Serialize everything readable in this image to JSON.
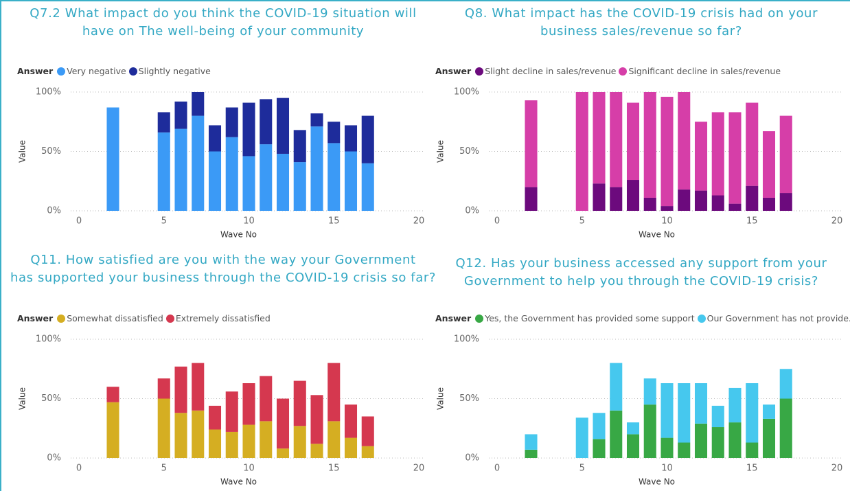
{
  "chart_data": [
    {
      "type": "bar",
      "stacked": true,
      "title": [
        "Q7.2 What impact do you think the COVID-19 situation will",
        "have on The well-being of your community"
      ],
      "legend_title": "Answer",
      "xlabel": "Wave No",
      "ylabel": "Value",
      "x": [
        2,
        5,
        6,
        7,
        8,
        9,
        10,
        11,
        12,
        13,
        14,
        15,
        16,
        17
      ],
      "series": [
        {
          "name": "Very negative",
          "color": "#3b9af6",
          "values": [
            87,
            66,
            69,
            80,
            50,
            62,
            46,
            56,
            48,
            41,
            71,
            57,
            50,
            40
          ]
        },
        {
          "name": "Slightly negative",
          "color": "#1e2c9b",
          "values": [
            null,
            17,
            23,
            20,
            22,
            25,
            45,
            38,
            47,
            27,
            11,
            18,
            22,
            40
          ]
        }
      ],
      "xlim": [
        0,
        20
      ],
      "xticks": [
        0,
        5,
        10,
        15,
        20
      ],
      "ylim": [
        0,
        100
      ],
      "yticks": [
        {
          "value": 0,
          "label": "0%"
        },
        {
          "value": 50,
          "label": "50%"
        },
        {
          "value": 100,
          "label": "100%"
        }
      ],
      "grid": true
    },
    {
      "type": "bar",
      "stacked": true,
      "title": [
        "Q8. What impact has the COVID-19 crisis had on your",
        "business sales/revenue so far?"
      ],
      "legend_title": "Answer",
      "xlabel": "Wave No",
      "ylabel": "Value",
      "x": [
        2,
        5,
        6,
        7,
        8,
        9,
        10,
        11,
        12,
        13,
        14,
        15,
        16,
        17
      ],
      "series": [
        {
          "name": "Slight decline in sales/revenue",
          "color": "#6c0a7d",
          "values": [
            20,
            null,
            23,
            20,
            26,
            11,
            4,
            18,
            17,
            13,
            6,
            21,
            11,
            15
          ]
        },
        {
          "name": "Significant decline in sales/revenue",
          "color": "#d63ea8",
          "values": [
            73,
            100,
            77,
            80,
            65,
            89,
            92,
            82,
            58,
            70,
            77,
            70,
            56,
            65
          ]
        }
      ],
      "xlim": [
        0,
        20
      ],
      "xticks": [
        0,
        5,
        10,
        15,
        20
      ],
      "ylim": [
        0,
        100
      ],
      "yticks": [
        {
          "value": 0,
          "label": "0%"
        },
        {
          "value": 50,
          "label": "50%"
        },
        {
          "value": 100,
          "label": "100%"
        }
      ],
      "grid": true
    },
    {
      "type": "bar",
      "stacked": true,
      "title": [
        "Q11. How satisfied are you with the way your Government",
        "has supported your business through the COVID-19 crisis so far?"
      ],
      "legend_title": "Answer",
      "xlabel": "Wave No",
      "ylabel": "Value",
      "x": [
        2,
        5,
        6,
        7,
        8,
        9,
        10,
        11,
        12,
        13,
        14,
        15,
        16,
        17
      ],
      "series": [
        {
          "name": "Somewhat dissatisfied",
          "color": "#d5ae22",
          "values": [
            47,
            50,
            38,
            40,
            24,
            22,
            28,
            31,
            8,
            27,
            12,
            31,
            17,
            10
          ]
        },
        {
          "name": "Extremely dissatisfied",
          "color": "#d5384f",
          "values": [
            13,
            17,
            39,
            40,
            20,
            34,
            35,
            38,
            42,
            38,
            41,
            49,
            28,
            25
          ]
        }
      ],
      "xlim": [
        0,
        20
      ],
      "xticks": [
        0,
        5,
        10,
        15,
        20
      ],
      "ylim": [
        0,
        100
      ],
      "yticks": [
        {
          "value": 0,
          "label": "0%"
        },
        {
          "value": 50,
          "label": "50%"
        },
        {
          "value": 100,
          "label": "100%"
        }
      ],
      "grid": true
    },
    {
      "type": "bar",
      "stacked": true,
      "title": [
        "Q12. Has your business accessed any support from your",
        "Government to help you through the COVID-19 crisis?"
      ],
      "legend_title": "Answer",
      "xlabel": "Wave No",
      "ylabel": "Value",
      "x": [
        2,
        5,
        6,
        7,
        8,
        9,
        10,
        11,
        12,
        13,
        14,
        15,
        16,
        17
      ],
      "series": [
        {
          "name": "Yes, the Government has provided some support",
          "color": "#38a845",
          "values": [
            7,
            null,
            16,
            40,
            20,
            45,
            17,
            13,
            29,
            26,
            30,
            13,
            33,
            50
          ]
        },
        {
          "name": "Our Government has not provide...",
          "color": "#46c8ee",
          "values": [
            13,
            34,
            22,
            40,
            10,
            22,
            46,
            50,
            34,
            18,
            29,
            50,
            12,
            25
          ]
        }
      ],
      "xlim": [
        0,
        20
      ],
      "xticks": [
        0,
        5,
        10,
        15,
        20
      ],
      "ylim": [
        0,
        100
      ],
      "yticks": [
        {
          "value": 0,
          "label": "0%"
        },
        {
          "value": 50,
          "label": "50%"
        },
        {
          "value": 100,
          "label": "100%"
        }
      ],
      "grid": true
    }
  ]
}
